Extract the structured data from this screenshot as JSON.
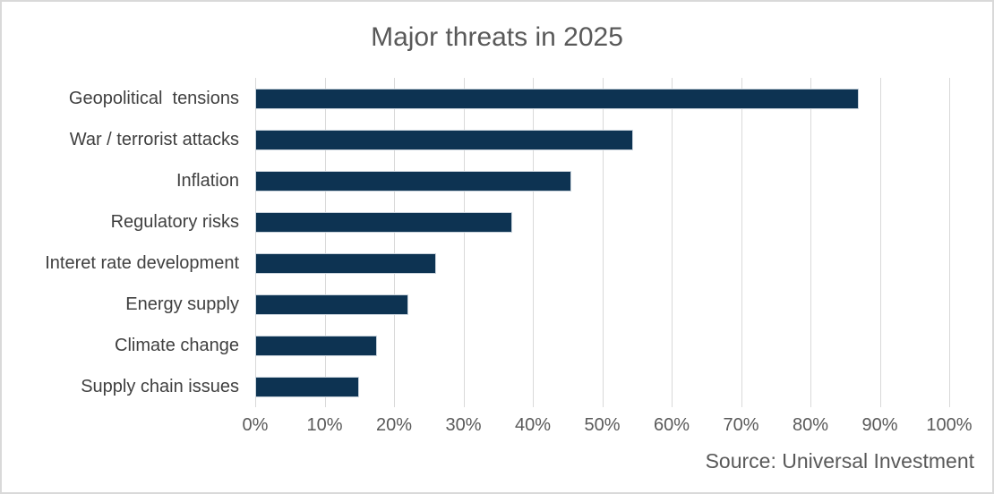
{
  "header": {
    "title": "Major threats in 2025"
  },
  "footer": {
    "source": "Source: Universal Investment"
  },
  "colors": {
    "background": "#ffffff",
    "frame_border": "#d9d9d9",
    "bar": "#0d3352",
    "bar_border": "#c9d3dc",
    "grid": "#d9d9d9",
    "title_text": "#595959",
    "label_text": "#404040",
    "tick_text": "#595959"
  },
  "chart_data": {
    "type": "bar",
    "orientation": "horizontal",
    "title": "Major threats in 2025",
    "categories": [
      "Geopolitical  tensions",
      "War / terrorist attacks",
      "Inflation",
      "Regulatory risks",
      "Interet rate development",
      "Energy supply",
      "Climate change",
      "Supply chain issues"
    ],
    "values": [
      87,
      54.5,
      45.5,
      37,
      26,
      22,
      17.5,
      15
    ],
    "unit": "%",
    "xlabel": "",
    "ylabel": "",
    "xlim": [
      0,
      100
    ],
    "x_ticks": [
      "0%",
      "10%",
      "20%",
      "30%",
      "40%",
      "50%",
      "60%",
      "70%",
      "80%",
      "90%",
      "100%"
    ],
    "grid": "vertical-only",
    "legend": "none",
    "source": "Source: Universal Investment"
  }
}
